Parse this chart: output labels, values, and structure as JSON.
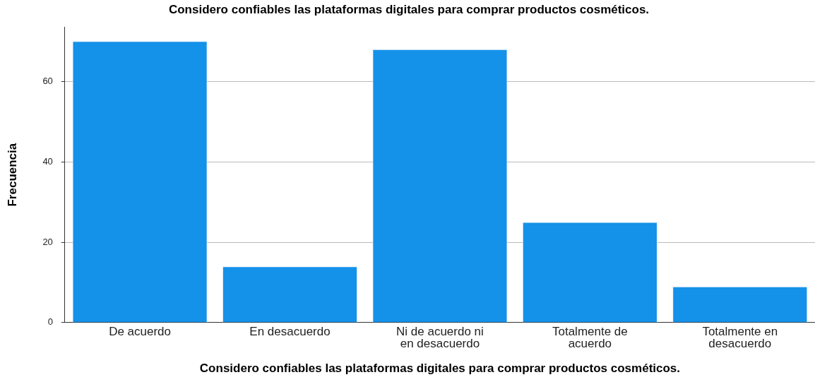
{
  "chart_data": {
    "type": "bar",
    "title": "Considero confiables las plataformas digitales para comprar productos cosméticos.",
    "xlabel": "Considero confiables las plataformas digitales para comprar productos cosméticos.",
    "ylabel": "Frecuencia",
    "categories": [
      "De acuerdo",
      "En desacuerdo",
      "Ni de acuerdo ni en desacuerdo",
      "Totalmente de acuerdo",
      "Totalmente en desacuerdo"
    ],
    "values": [
      70,
      14,
      68,
      25,
      9
    ],
    "color": "#1491e8",
    "ylim": [
      0,
      73.5
    ],
    "yticks": [
      0,
      20,
      40,
      60
    ],
    "grid": "y",
    "legend": false
  }
}
